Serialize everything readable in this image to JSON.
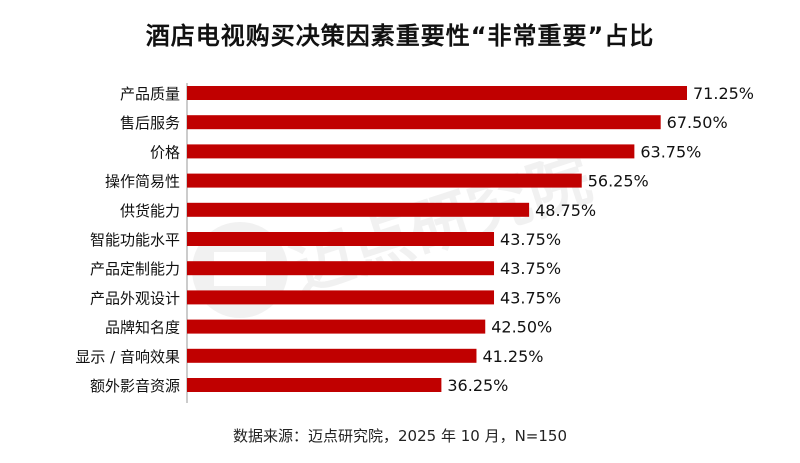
{
  "chart_data": {
    "type": "bar",
    "orientation": "horizontal",
    "title": "酒店电视购买决策因素重要性“非常重要”占比",
    "categories": [
      "产品质量",
      "售后服务",
      "价格",
      "操作简易性",
      "供货能力",
      "智能功能水平",
      "产品定制能力",
      "产品外观设计",
      "品牌知名度",
      "显示 / 音响效果",
      "额外影音资源"
    ],
    "values": [
      71.25,
      67.5,
      63.75,
      56.25,
      48.75,
      43.75,
      43.75,
      43.75,
      42.5,
      41.25,
      36.25
    ],
    "value_labels": [
      "71.25%",
      "67.50%",
      "63.75%",
      "56.25%",
      "48.75%",
      "43.75%",
      "43.75%",
      "43.75%",
      "42.50%",
      "41.25%",
      "36.25%"
    ],
    "unit": "%",
    "xlim": [
      0,
      100
    ],
    "grid": false,
    "legend": "none",
    "bar_color": "#c00000"
  },
  "source": "数据来源：迈点研究院，2025 年 10 月，N=150",
  "watermark": "迈点研究院"
}
